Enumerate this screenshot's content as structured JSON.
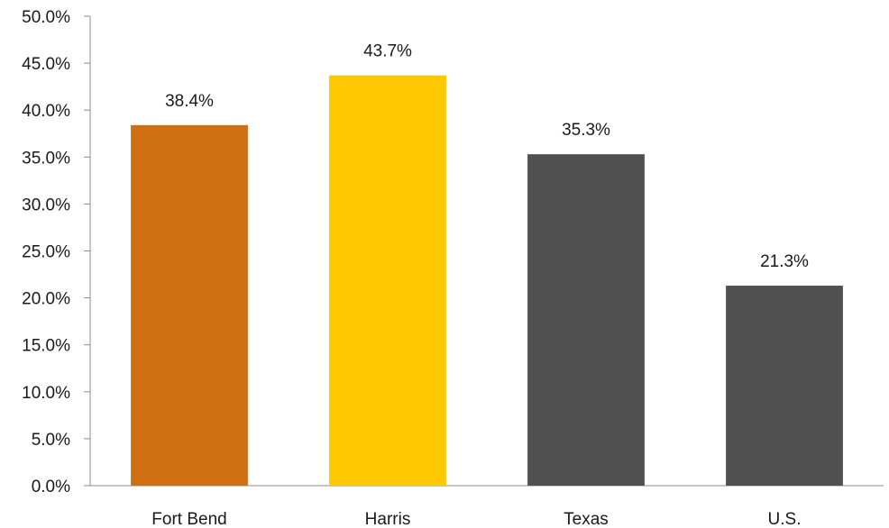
{
  "chart_data": {
    "type": "bar",
    "title": "",
    "xlabel": "",
    "ylabel": "",
    "categories": [
      "Fort Bend",
      "Harris",
      "Texas",
      "U.S."
    ],
    "values": [
      38.4,
      43.7,
      35.3,
      21.3
    ],
    "data_labels": [
      "38.4%",
      "43.7%",
      "35.3%",
      "21.3%"
    ],
    "bar_colors": [
      "#D06E12",
      "#FFC800",
      "#505050",
      "#505050"
    ],
    "ylim": [
      0,
      50
    ],
    "y_ticks": [
      0,
      5,
      10,
      15,
      20,
      25,
      30,
      35,
      40,
      45,
      50
    ],
    "y_tick_labels": [
      "0.0%",
      "5.0%",
      "10.0%",
      "15.0%",
      "20.0%",
      "25.0%",
      "30.0%",
      "35.0%",
      "40.0%",
      "45.0%",
      "50.0%"
    ],
    "grid": false,
    "legend": "none"
  }
}
